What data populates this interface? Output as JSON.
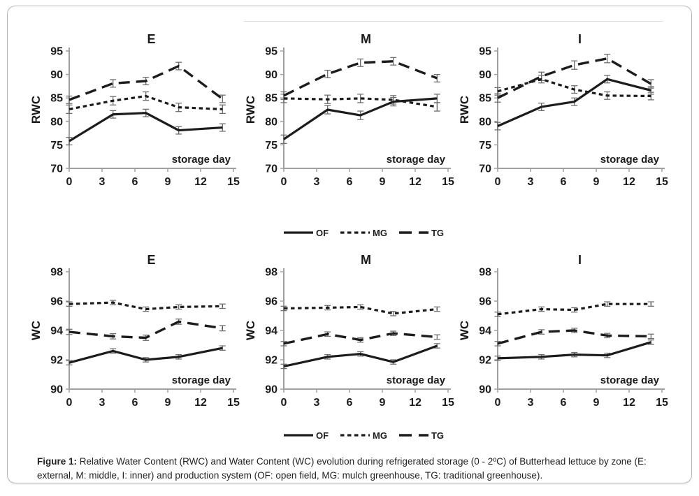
{
  "figure": {
    "caption_label": "Figure 1:",
    "caption_text": " Relative Water Content (RWC) and Water Content (WC) evolution during refrigerated storage (0 - 2ºC) of Butterhead lettuce by zone (E: external, M: middle, I: inner) and production system (OF: open field, MG: mulch greenhouse, TG: traditional greenhouse).",
    "colors": {
      "line": "#1c1c1c",
      "axis": "#a0a0a0",
      "error_bar": "#6e6e6e",
      "text": "#1b1b1b"
    }
  },
  "legend": {
    "entries": [
      {
        "label": "OF",
        "style": "solid"
      },
      {
        "label": "MG",
        "style": "dotted"
      },
      {
        "label": "TG",
        "style": "dashed"
      }
    ],
    "positions": [
      "below-top-row",
      "below-bottom-row"
    ]
  },
  "chart_data": [
    {
      "type": "line",
      "title": "E",
      "ylabel": "RWC",
      "xlabel": "storage day",
      "x": [
        0,
        4,
        7,
        10,
        14
      ],
      "xlim": [
        0,
        15
      ],
      "xticks": [
        0,
        3,
        6,
        9,
        12,
        15
      ],
      "ylim": [
        70,
        95
      ],
      "yticks": [
        70,
        75,
        80,
        85,
        90,
        95
      ],
      "grid": false,
      "series": [
        {
          "name": "OF",
          "style": "solid",
          "values": [
            75.8,
            81.5,
            81.8,
            78.1,
            78.7
          ],
          "err": 0.8
        },
        {
          "name": "MG",
          "style": "dotted",
          "values": [
            82.6,
            84.4,
            85.4,
            83.0,
            82.6
          ],
          "err": 0.9
        },
        {
          "name": "TG",
          "style": "dashed",
          "values": [
            84.6,
            88.1,
            88.6,
            91.8,
            84.8
          ],
          "err": 0.8
        }
      ]
    },
    {
      "type": "line",
      "title": "M",
      "ylabel": "RWC",
      "xlabel": "storage day",
      "x": [
        0,
        4,
        7,
        10,
        14
      ],
      "xlim": [
        0,
        15
      ],
      "xticks": [
        0,
        3,
        6,
        9,
        12,
        15
      ],
      "ylim": [
        70,
        95
      ],
      "yticks": [
        70,
        75,
        80,
        85,
        90,
        95
      ],
      "grid": false,
      "series": [
        {
          "name": "OF",
          "style": "solid",
          "values": [
            76.2,
            82.5,
            81.3,
            84.2,
            84.9
          ],
          "err": 0.9
        },
        {
          "name": "MG",
          "style": "dotted",
          "values": [
            84.9,
            84.7,
            84.9,
            84.6,
            83.1
          ],
          "err": 0.9
        },
        {
          "name": "TG",
          "style": "dashed",
          "values": [
            85.5,
            90.1,
            92.5,
            92.8,
            89.2
          ],
          "err": 0.8
        }
      ]
    },
    {
      "type": "line",
      "title": "I",
      "ylabel": "RWC",
      "xlabel": "storage day",
      "x": [
        0,
        4,
        7,
        10,
        14
      ],
      "xlim": [
        0,
        15
      ],
      "xticks": [
        0,
        3,
        6,
        9,
        12,
        15
      ],
      "ylim": [
        70,
        95
      ],
      "yticks": [
        70,
        75,
        80,
        85,
        90,
        95
      ],
      "grid": false,
      "series": [
        {
          "name": "OF",
          "style": "solid",
          "values": [
            79.0,
            83.1,
            84.2,
            89.0,
            86.6
          ],
          "err": 0.8
        },
        {
          "name": "MG",
          "style": "dotted",
          "values": [
            86.4,
            89.0,
            86.8,
            85.5,
            85.4
          ],
          "err": 0.8
        },
        {
          "name": "TG",
          "style": "dashed",
          "values": [
            85.0,
            89.6,
            92.0,
            93.4,
            88.0
          ],
          "err": 0.9
        }
      ]
    },
    {
      "type": "line",
      "title": "E",
      "ylabel": "WC",
      "xlabel": "storage day",
      "x": [
        0,
        4,
        7,
        10,
        14
      ],
      "xlim": [
        0,
        15
      ],
      "xticks": [
        0,
        3,
        6,
        9,
        12,
        15
      ],
      "ylim": [
        90,
        98
      ],
      "yticks": [
        90,
        92,
        94,
        96,
        98
      ],
      "grid": false,
      "series": [
        {
          "name": "OF",
          "style": "solid",
          "values": [
            91.8,
            92.6,
            92.0,
            92.2,
            92.8
          ],
          "err": 0.15
        },
        {
          "name": "MG",
          "style": "dotted",
          "values": [
            95.8,
            95.9,
            95.45,
            95.6,
            95.65
          ],
          "err": 0.15
        },
        {
          "name": "TG",
          "style": "dashed",
          "values": [
            93.9,
            93.6,
            93.5,
            94.6,
            94.15
          ],
          "err": 0.18
        }
      ]
    },
    {
      "type": "line",
      "title": "M",
      "ylabel": "WC",
      "xlabel": "storage day",
      "x": [
        0,
        4,
        7,
        10,
        14
      ],
      "xlim": [
        0,
        15
      ],
      "xticks": [
        0,
        3,
        6,
        9,
        12,
        15
      ],
      "ylim": [
        90,
        98
      ],
      "yticks": [
        90,
        92,
        94,
        96,
        98
      ],
      "grid": false,
      "series": [
        {
          "name": "OF",
          "style": "solid",
          "values": [
            91.55,
            92.2,
            92.4,
            91.85,
            92.95
          ],
          "err": 0.15
        },
        {
          "name": "MG",
          "style": "dotted",
          "values": [
            95.5,
            95.55,
            95.6,
            95.15,
            95.45
          ],
          "err": 0.15
        },
        {
          "name": "TG",
          "style": "dashed",
          "values": [
            93.1,
            93.75,
            93.35,
            93.8,
            93.55
          ],
          "err": 0.15
        }
      ]
    },
    {
      "type": "line",
      "title": "I",
      "ylabel": "WC",
      "xlabel": "storage day",
      "x": [
        0,
        4,
        7,
        10,
        14
      ],
      "xlim": [
        0,
        15
      ],
      "xticks": [
        0,
        3,
        6,
        9,
        12,
        15
      ],
      "ylim": [
        90,
        98
      ],
      "yticks": [
        90,
        92,
        94,
        96,
        98
      ],
      "grid": false,
      "series": [
        {
          "name": "OF",
          "style": "solid",
          "values": [
            92.1,
            92.2,
            92.35,
            92.3,
            93.2
          ],
          "err": 0.15
        },
        {
          "name": "MG",
          "style": "dotted",
          "values": [
            95.1,
            95.45,
            95.4,
            95.8,
            95.8
          ],
          "err": 0.15
        },
        {
          "name": "TG",
          "style": "dashed",
          "values": [
            93.1,
            93.9,
            94.0,
            93.65,
            93.6
          ],
          "err": 0.15
        }
      ]
    }
  ]
}
